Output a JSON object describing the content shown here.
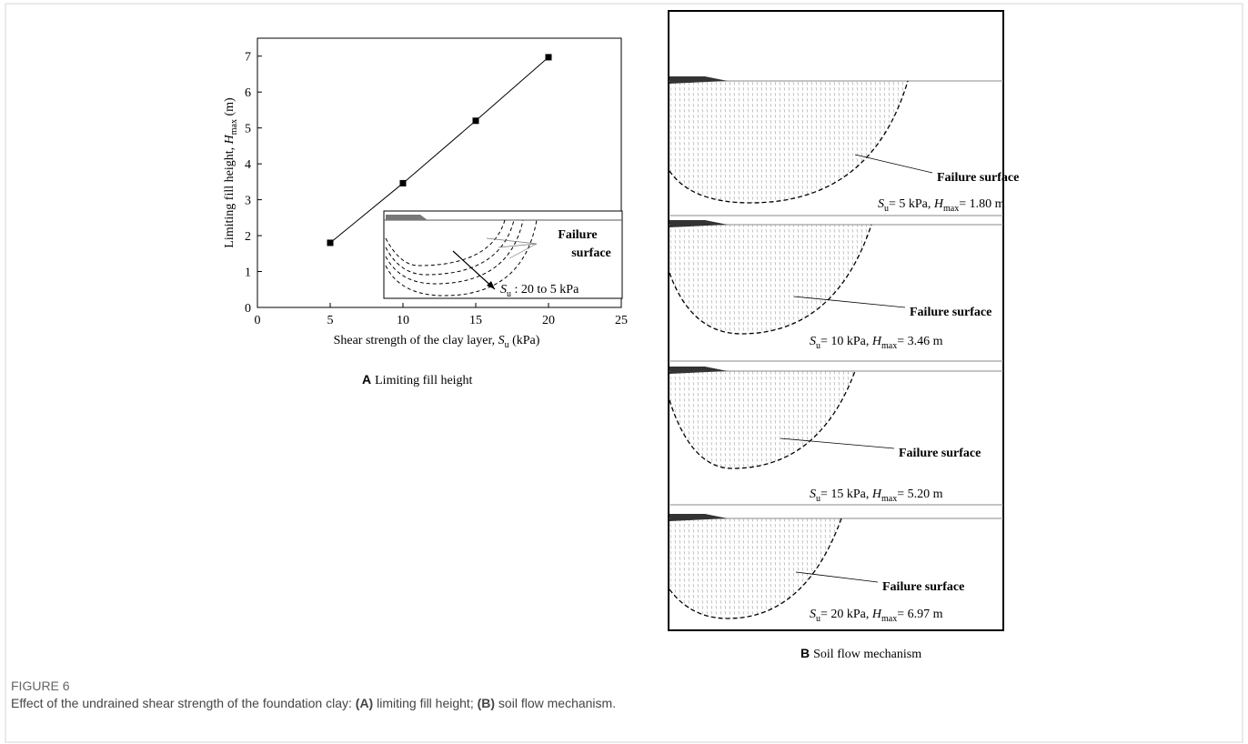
{
  "chart_data": {
    "type": "line",
    "x": [
      5,
      10,
      15,
      20
    ],
    "values": [
      1.8,
      3.46,
      5.2,
      6.97
    ],
    "color": "#000000",
    "marker": "square",
    "xlim": [
      0,
      25
    ],
    "xticks": [
      0,
      5,
      10,
      15,
      20,
      25
    ],
    "ylim": [
      0,
      7.5
    ],
    "yticks": [
      0,
      1,
      2,
      3,
      4,
      5,
      6,
      7
    ],
    "x_label": [
      "Shear strength of the clay layer, ",
      "S",
      "u",
      " (kPa)"
    ],
    "y_label": [
      "Limiting fill height, ",
      "H",
      "max",
      " (m)"
    ]
  },
  "inset": {
    "label": [
      "Failure",
      "surface"
    ],
    "range": [
      "S",
      "u",
      " : 20 to 5 kPa"
    ]
  },
  "panel_a": {
    "letter": "A",
    "caption": "Limiting fill height"
  },
  "panel_b": {
    "letter": "B",
    "caption": "Soil flow mechanism",
    "sections": [
      {
        "label": "Failure surface",
        "text": [
          "S",
          "u",
          "= 5 kPa,  ",
          "H",
          "max",
          "= 1.80 m"
        ]
      },
      {
        "label": "Failure surface",
        "text": [
          "S",
          "u",
          "= 10 kPa,  ",
          "H",
          "max",
          "= 3.46 m"
        ]
      },
      {
        "label": "Failure surface",
        "text": [
          "S",
          "u",
          "= 15 kPa,  ",
          "H",
          "max",
          "= 5.20 m"
        ]
      },
      {
        "label": "Failure surface",
        "text": [
          "S",
          "u",
          "= 20 kPa,  ",
          "H",
          "max",
          "= 6.97 m"
        ]
      }
    ]
  },
  "figure": {
    "number": "FIGURE 6",
    "caption": [
      "Effect of the undrained shear strength of the foundation clay: ",
      "(A)",
      " limiting fill height; ",
      "(B)",
      " soil flow mechanism."
    ]
  }
}
